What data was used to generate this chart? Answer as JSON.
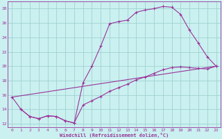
{
  "xlabel": "Windchill (Refroidissement éolien,°C)",
  "bg_color": "#caf0f0",
  "line_color": "#993399",
  "grid_color": "#99cccc",
  "xlim": [
    -0.5,
    23.5
  ],
  "ylim": [
    11.5,
    29.0
  ],
  "yticks": [
    12,
    14,
    16,
    18,
    20,
    22,
    24,
    26,
    28
  ],
  "xticks": [
    0,
    1,
    2,
    3,
    4,
    5,
    6,
    7,
    8,
    9,
    10,
    11,
    12,
    13,
    14,
    15,
    16,
    17,
    18,
    19,
    20,
    21,
    22,
    23
  ],
  "line1_x": [
    0,
    1,
    2,
    3,
    4,
    5,
    6,
    7,
    8,
    9,
    10,
    11,
    12,
    13,
    14,
    15,
    16,
    17,
    18,
    19,
    20,
    21,
    22,
    23
  ],
  "line1_y": [
    15.7,
    14.0,
    13.0,
    12.7,
    13.1,
    13.0,
    12.4,
    12.1,
    17.7,
    20.0,
    22.8,
    25.9,
    26.2,
    26.4,
    27.5,
    27.8,
    28.0,
    28.3,
    28.2,
    27.2,
    25.0,
    23.2,
    21.3,
    20.0
  ],
  "line2_x": [
    1,
    2,
    3,
    4,
    5,
    6,
    7,
    8,
    9,
    10,
    11,
    12,
    13,
    14,
    15,
    16,
    17,
    18,
    19,
    20,
    21,
    22,
    23
  ],
  "line2_y": [
    14.0,
    13.0,
    12.7,
    13.1,
    13.0,
    12.4,
    12.1,
    14.6,
    15.2,
    15.8,
    16.5,
    17.0,
    17.5,
    18.1,
    18.5,
    19.0,
    19.5,
    19.8,
    19.9,
    19.8,
    19.7,
    19.6,
    20.0
  ],
  "line3_x": [
    0,
    23
  ],
  "line3_y": [
    15.7,
    20.0
  ],
  "marker_size": 3,
  "lw": 0.8
}
